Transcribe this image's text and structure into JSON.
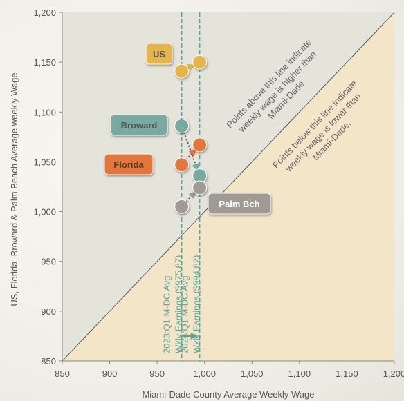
{
  "chart_data": {
    "type": "scatter",
    "title": "",
    "xlabel": "Miami-Dade County Average Weekly Wage",
    "ylabel": "US, Florida, Broward & Palm Beach Average weekly Wage",
    "xlim": [
      850,
      1200
    ],
    "ylim": [
      850,
      1200
    ],
    "xticks": [
      850,
      900,
      950,
      1000,
      1050,
      1100,
      1150,
      1200
    ],
    "yticks": [
      850,
      900,
      950,
      1000,
      1050,
      1100,
      1150,
      1200
    ],
    "xtick_labels": [
      "850",
      "900",
      "950",
      "1,000",
      "1,050",
      "1,100",
      "1,150",
      "1,200"
    ],
    "ytick_labels": [
      "850",
      "900",
      "950",
      "1,000",
      "1,050",
      "1,100",
      "1,150",
      "1,200"
    ],
    "grid": false,
    "series": [
      {
        "name": "US",
        "color": "#e4b54c",
        "points": [
          {
            "x": 975.87,
            "y": 1141
          },
          {
            "x": 994.82,
            "y": 1150
          }
        ]
      },
      {
        "name": "Broward",
        "color": "#78aaa2",
        "points": [
          {
            "x": 975.87,
            "y": 1086
          },
          {
            "x": 994.82,
            "y": 1036
          }
        ]
      },
      {
        "name": "Florida",
        "color": "#e2763a",
        "points": [
          {
            "x": 975.87,
            "y": 1047
          },
          {
            "x": 994.82,
            "y": 1067
          }
        ]
      },
      {
        "name": "Palm Bch",
        "color": "#a09a95",
        "points": [
          {
            "x": 975.87,
            "y": 1005
          },
          {
            "x": 994.82,
            "y": 1024
          }
        ]
      }
    ],
    "reference_lines": [
      {
        "x": 975.87,
        "label_line1": "2023:Q1 M-DC Avg",
        "label_line2": "Wkly Earnings ($975.87)"
      },
      {
        "x": 994.82,
        "label_line1": "2024:Q1 M-DC Avg",
        "label_line2": "Wkly Earnings ($994.82)"
      }
    ],
    "annotations": {
      "above_diagonal": [
        "Points above this line indicate",
        "weekly wage is higher than",
        "Miami-Dade"
      ],
      "below_diagonal": [
        "Points below this line indicate",
        "weekly wage is lower than",
        "Miami-Dade."
      ]
    },
    "colors": {
      "upper_region": "#e5e4db",
      "lower_region": "#f2e5c8",
      "reference_line": "#5fa398",
      "diagonal": "#555555"
    }
  }
}
